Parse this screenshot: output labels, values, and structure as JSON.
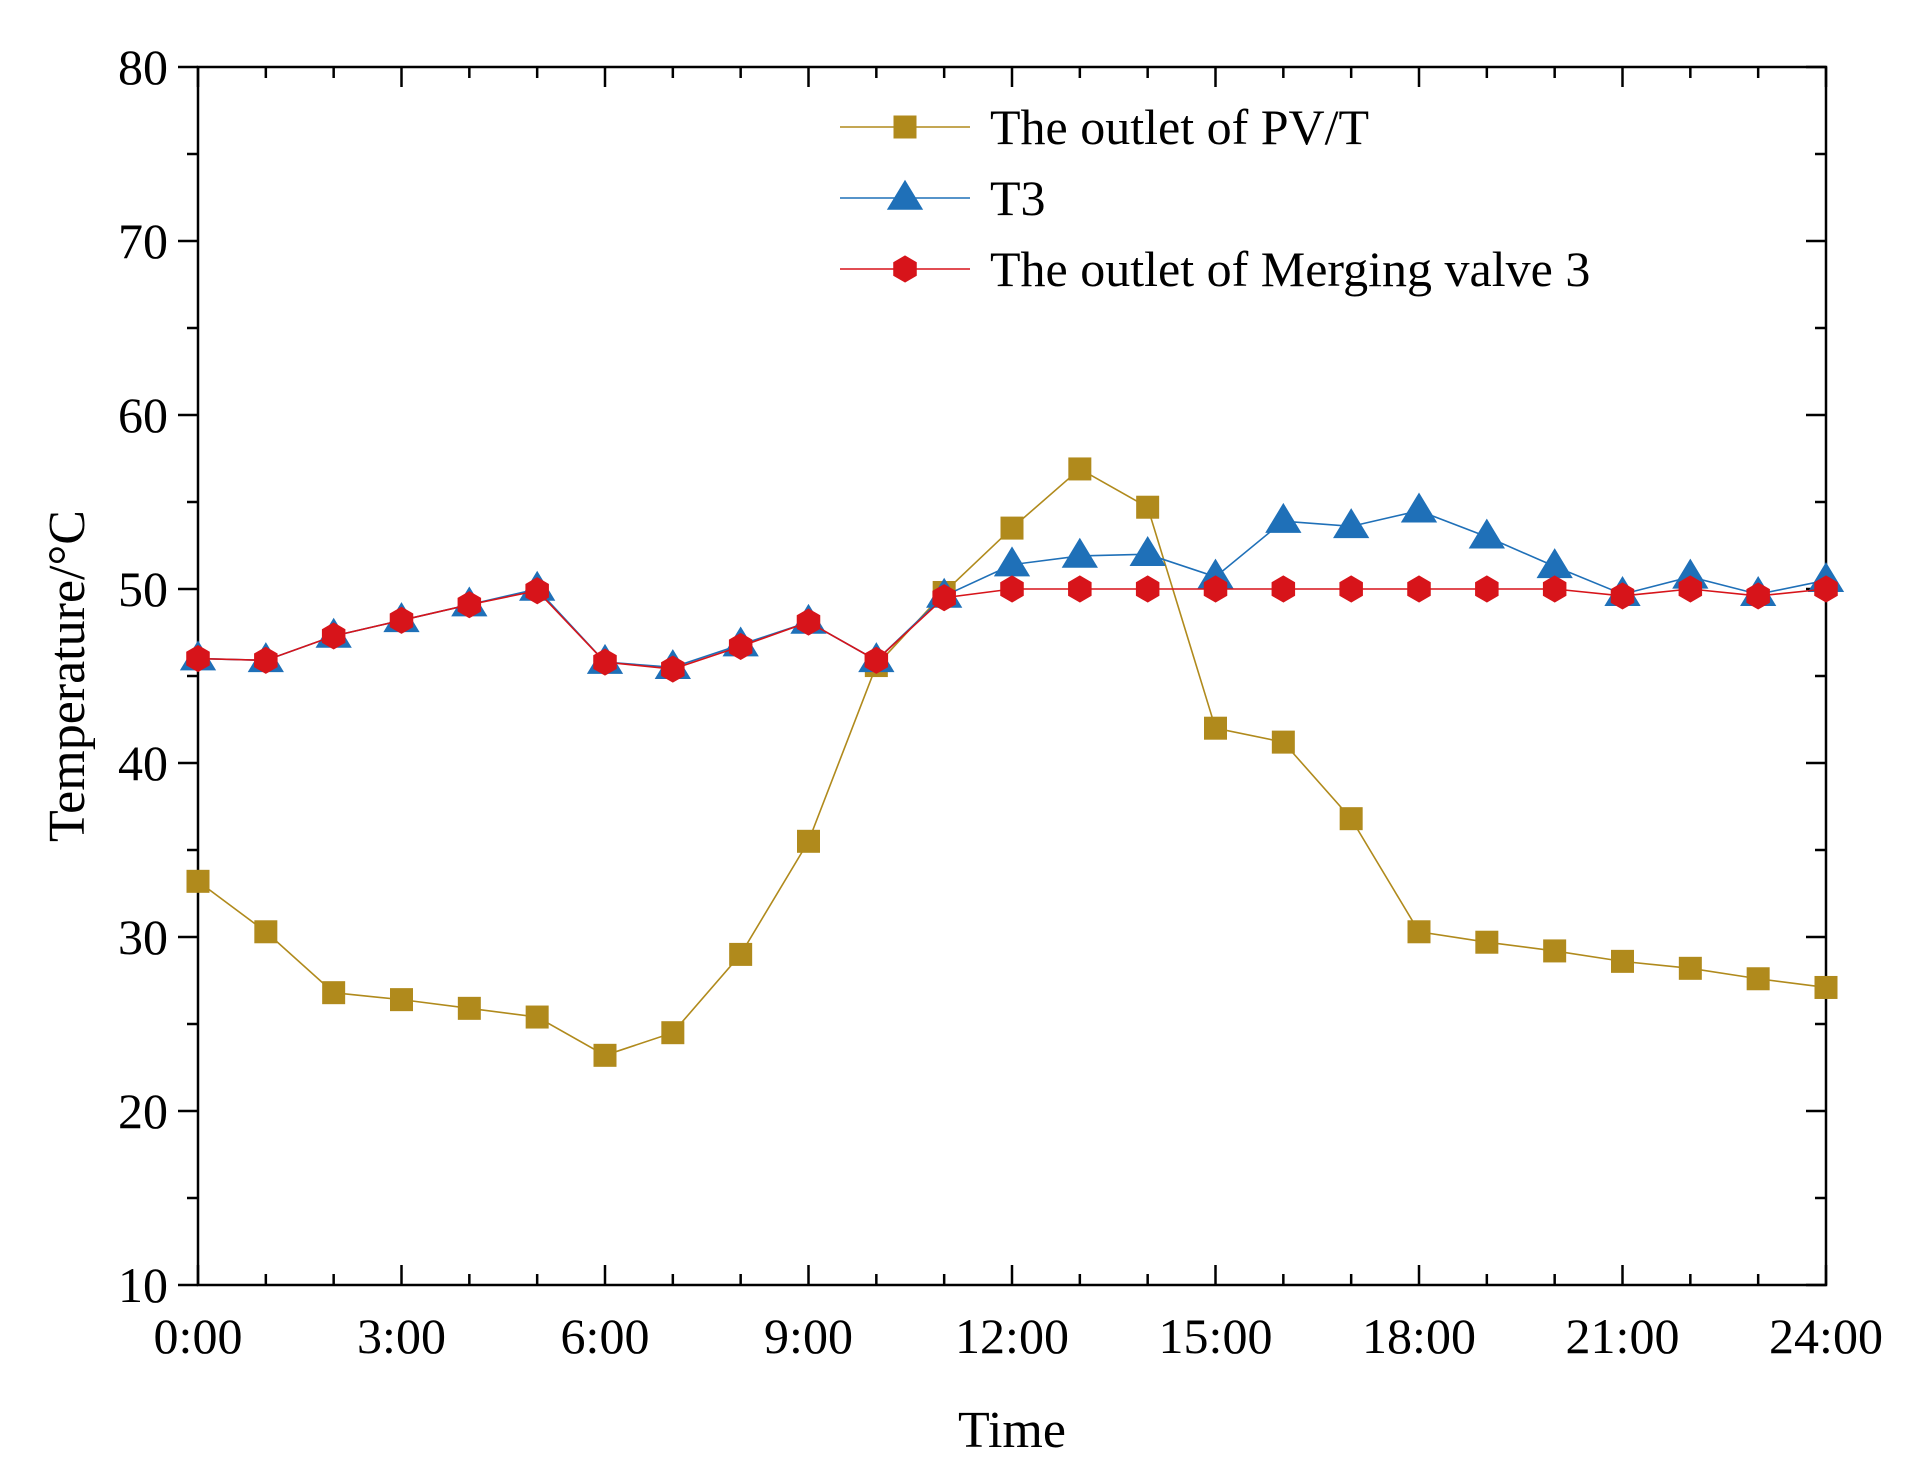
{
  "chart_data": {
    "type": "line",
    "title": "",
    "xlabel": "Time",
    "ylabel": "Temperature/°C",
    "xlim": [
      0,
      24
    ],
    "ylim": [
      10,
      80
    ],
    "x": [
      0,
      1,
      2,
      3,
      4,
      5,
      6,
      7,
      8,
      9,
      10,
      11,
      12,
      13,
      14,
      15,
      16,
      17,
      18,
      19,
      20,
      21,
      22,
      23,
      24
    ],
    "x_ticks": [
      0,
      3,
      6,
      9,
      12,
      15,
      18,
      21,
      24
    ],
    "x_tick_labels": [
      "0:00",
      "3:00",
      "6:00",
      "9:00",
      "12:00",
      "15:00",
      "18:00",
      "21:00",
      "24:00"
    ],
    "y_ticks": [
      10,
      20,
      30,
      40,
      50,
      60,
      70,
      80
    ],
    "y_tick_labels": [
      "10",
      "20",
      "30",
      "40",
      "50",
      "60",
      "70",
      "80"
    ],
    "grid": false,
    "legend_position": "top-center",
    "series": [
      {
        "name": "The outlet of PV/T",
        "color": "#B08A1C",
        "marker": "square",
        "values": [
          33.2,
          30.3,
          26.8,
          26.4,
          25.9,
          25.4,
          23.2,
          24.5,
          29.0,
          35.5,
          45.6,
          49.8,
          53.5,
          56.9,
          54.7,
          42.0,
          41.2,
          36.8,
          30.3,
          29.7,
          29.2,
          28.6,
          28.2,
          27.6,
          27.1
        ]
      },
      {
        "name": "T3",
        "color": "#1F70B8",
        "marker": "triangle",
        "values": [
          46.0,
          45.9,
          47.3,
          48.2,
          49.1,
          50.0,
          45.8,
          45.5,
          46.8,
          48.1,
          45.9,
          49.6,
          51.4,
          51.9,
          52.0,
          50.7,
          53.9,
          53.6,
          54.5,
          53.0,
          51.3,
          49.7,
          50.7,
          49.7,
          50.5
        ]
      },
      {
        "name": "The outlet of Merging valve 3",
        "color": "#D7141A",
        "marker": "hexagon",
        "values": [
          46.0,
          45.9,
          47.3,
          48.2,
          49.1,
          49.9,
          45.8,
          45.4,
          46.7,
          48.1,
          45.9,
          49.5,
          50.0,
          50.0,
          50.0,
          50.0,
          50.0,
          50.0,
          50.0,
          50.0,
          50.0,
          49.6,
          50.0,
          49.6,
          50.0
        ]
      }
    ]
  }
}
